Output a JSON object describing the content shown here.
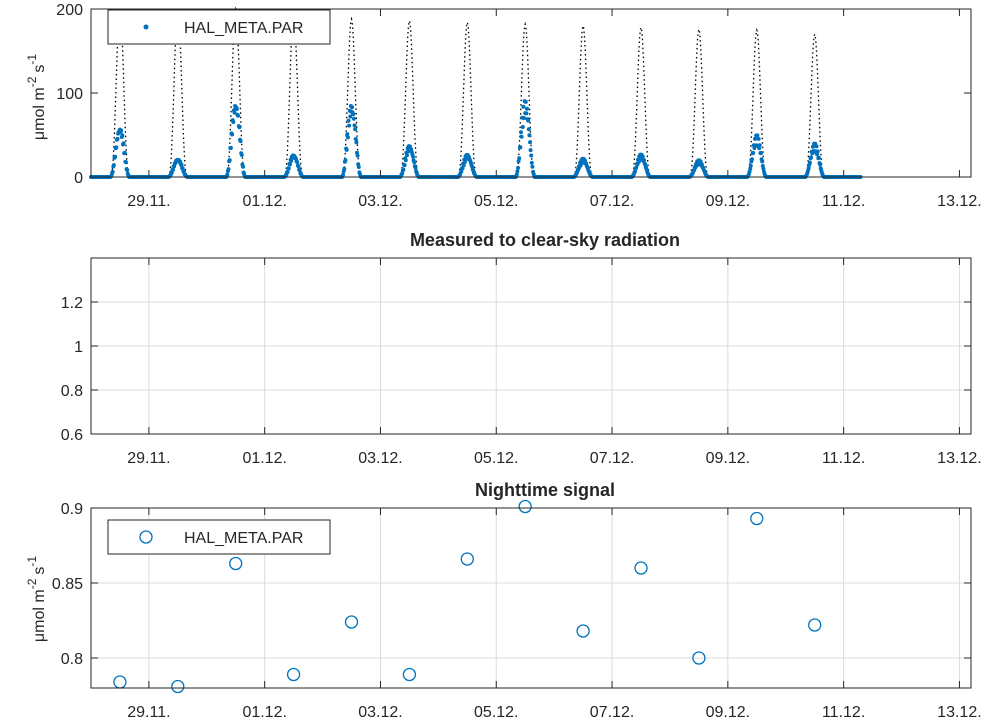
{
  "colors": {
    "series": "#0072BD",
    "clearsky": "#000000",
    "grid": "#dcdcdc",
    "axis": "#262626"
  },
  "chart_data": [
    {
      "type": "scatter",
      "title": "",
      "ylabel": "μmol m⁻² s⁻¹",
      "ylabel_base": "μmol m",
      "ylabel_exp1": "-2",
      "ylabel_mid": "s",
      "ylabel_exp2": "-1",
      "xlim": [
        28.0,
        43.2
      ],
      "ylim": [
        0,
        200
      ],
      "yticks": [
        0,
        100,
        200
      ],
      "ytick_labels": [
        "0",
        "100",
        "200"
      ],
      "xticks": [
        29,
        31,
        33,
        35,
        37,
        39,
        41,
        43
      ],
      "xtick_labels": [
        "29.11.",
        "01.12.",
        "03.12.",
        "05.12.",
        "07.12.",
        "09.12.",
        "11.12.",
        "13.12."
      ],
      "grid": false,
      "legend": {
        "position": "top-left",
        "entries": [
          "HAL_META.PAR"
        ]
      },
      "day_start": 28.0,
      "data_end": 41.3,
      "daily_measured_peak": [
        60,
        22,
        90,
        27,
        88,
        38,
        27,
        92,
        22,
        27,
        20,
        50,
        40
      ],
      "daily_clearsky_peak": [
        200,
        200,
        200,
        195,
        188,
        186,
        184,
        182,
        180,
        178,
        176,
        175,
        170
      ],
      "clearsky_line_style": "dotted"
    },
    {
      "type": "line",
      "title": "Measured to clear-sky radiation",
      "xlim": [
        28.0,
        43.2
      ],
      "ylim": [
        0.6,
        1.4
      ],
      "yticks": [
        0.6,
        0.8,
        1.0,
        1.2
      ],
      "ytick_labels": [
        "0.6",
        "0.8",
        "1",
        "1.2"
      ],
      "xticks": [
        29,
        31,
        33,
        35,
        37,
        39,
        41,
        43
      ],
      "xtick_labels": [
        "29.11.",
        "01.12.",
        "03.12.",
        "05.12.",
        "07.12.",
        "09.12.",
        "11.12.",
        "13.12."
      ],
      "grid": true,
      "series": []
    },
    {
      "type": "scatter",
      "title": "Nighttime signal",
      "ylabel": "μmol m⁻² s⁻¹",
      "ylabel_base": "μmol m",
      "ylabel_exp1": "-2",
      "ylabel_mid": "s",
      "ylabel_exp2": "-1",
      "xlim": [
        28.0,
        43.2
      ],
      "ylim": [
        0.78,
        0.9
      ],
      "yticks": [
        0.8,
        0.85,
        0.9
      ],
      "ytick_labels": [
        "0.8",
        "0.85",
        "0.9"
      ],
      "xticks": [
        29,
        31,
        33,
        35,
        37,
        39,
        41,
        43
      ],
      "xtick_labels": [
        "29.11.",
        "01.12.",
        "03.12.",
        "05.12.",
        "07.12.",
        "09.12.",
        "11.12.",
        "13.12."
      ],
      "grid": true,
      "legend": {
        "position": "top-left",
        "entries": [
          "HAL_META.PAR"
        ]
      },
      "x": [
        28.5,
        29.5,
        30.5,
        31.5,
        32.5,
        33.5,
        34.5,
        35.5,
        36.5,
        37.5,
        38.5,
        39.5,
        40.5
      ],
      "values": [
        0.784,
        0.781,
        0.863,
        0.789,
        0.824,
        0.789,
        0.866,
        0.901,
        0.818,
        0.86,
        0.8,
        0.893,
        0.822
      ]
    }
  ]
}
